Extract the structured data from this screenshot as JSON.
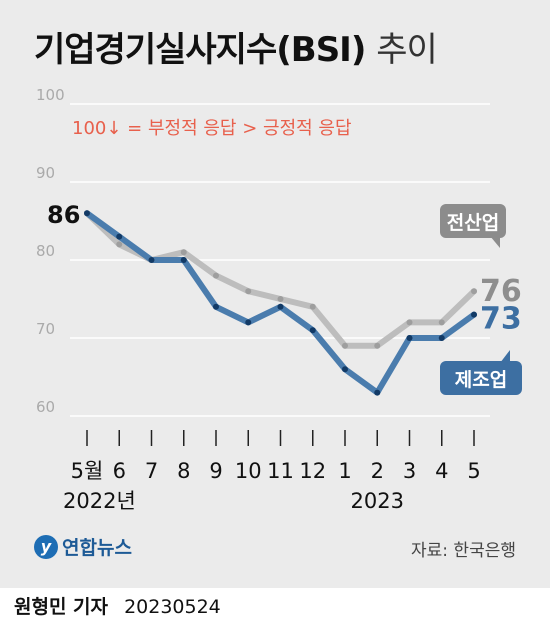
{
  "header": {
    "title_main": "기업경기실사지수(BSI)",
    "title_sub": "추이",
    "note": "100↓ = 부정적 응답 > 긍정적 응답"
  },
  "chart_data": {
    "type": "line",
    "title": "기업경기실사지수(BSI) 추이",
    "categories": [
      "5월",
      "6",
      "7",
      "8",
      "9",
      "10",
      "11",
      "12",
      "1",
      "2",
      "3",
      "4",
      "5"
    ],
    "year_labels": [
      {
        "label": "2022년",
        "index": 0
      },
      {
        "label": "2023",
        "index": 9
      }
    ],
    "y_ticks": [
      60,
      70,
      80,
      90,
      100
    ],
    "ylim": [
      60,
      100
    ],
    "series": [
      {
        "name": "전산업",
        "color": "#bdbdbd",
        "values": [
          86,
          82,
          80,
          81,
          78,
          76,
          75,
          74,
          69,
          69,
          72,
          72,
          76
        ],
        "end_label": "76"
      },
      {
        "name": "제조업",
        "color": "#4a7cad",
        "values": [
          86,
          83,
          80,
          80,
          74,
          72,
          74,
          71,
          66,
          63,
          70,
          70,
          73
        ],
        "end_label": "73"
      }
    ],
    "start_label": "86",
    "grid": true
  },
  "footer": {
    "logo_text": "연합뉴스",
    "source": "자료: 한국은행"
  },
  "byline": {
    "name": "원형민 기자",
    "date": "20230524"
  }
}
